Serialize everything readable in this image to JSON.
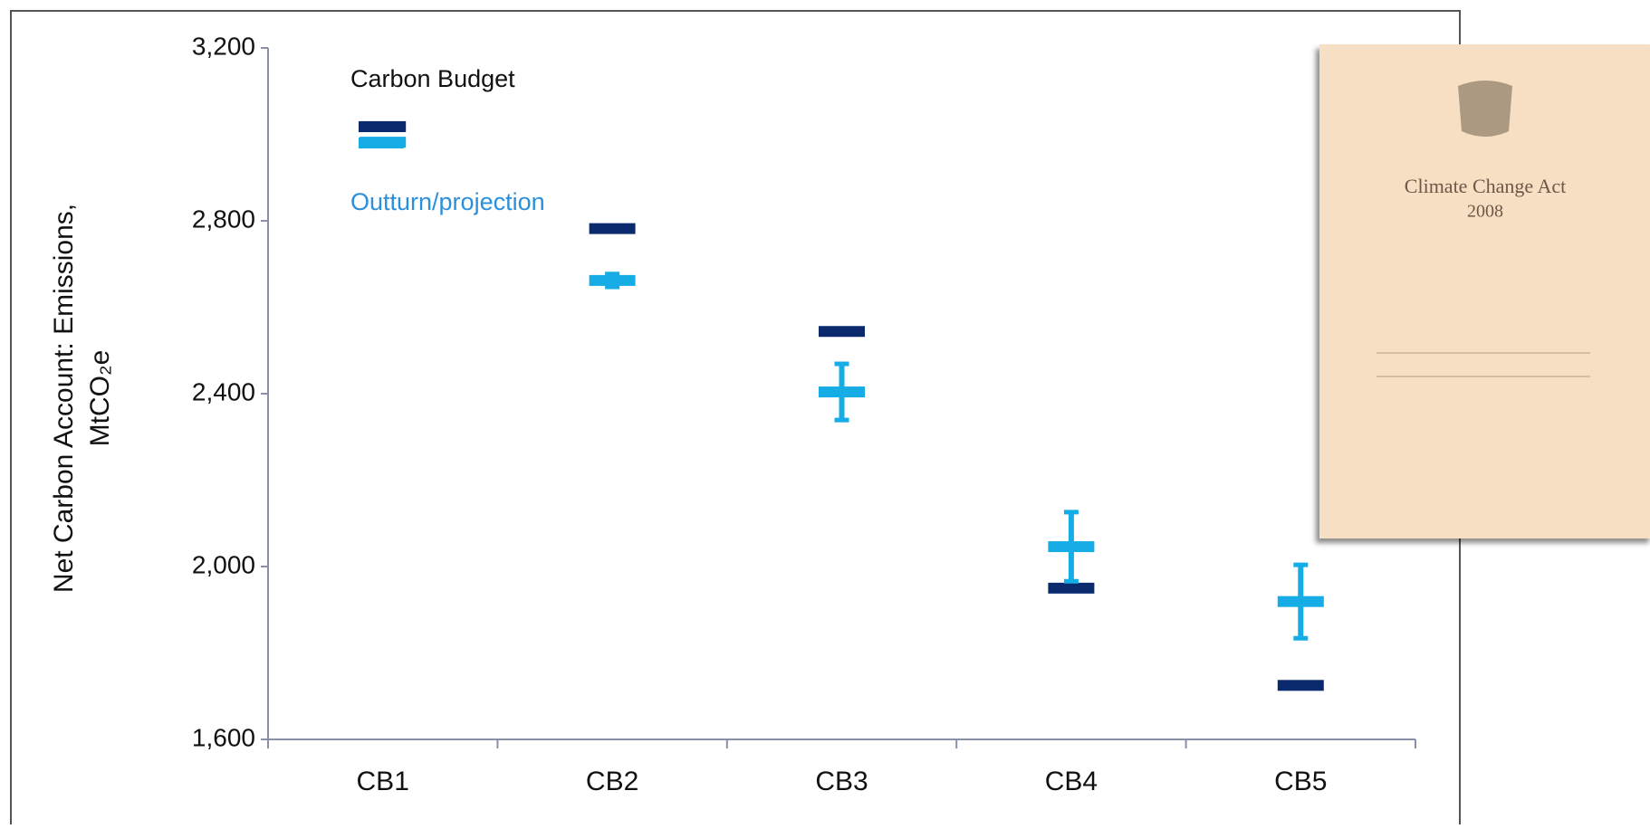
{
  "chart_data": {
    "type": "errorbar",
    "y_label": [
      "Net Carbon Account: Emissions,",
      "MtCO₂e"
    ],
    "categories": [
      "CB1",
      "CB2",
      "CB3",
      "CB4",
      "CB5"
    ],
    "series": [
      {
        "name": "Carbon Budget",
        "color": "#0b2a6e",
        "values": [
          3018,
          2782,
          2544,
          1950,
          1725
        ]
      },
      {
        "name": "Outturn/projection",
        "color": "#16ace6",
        "values": [
          2982,
          2662,
          2404,
          2046,
          1919
        ],
        "errors": [
          null,
          15,
          65,
          80,
          85
        ]
      }
    ],
    "ylim": [
      1600,
      3200
    ],
    "yticks": [
      {
        "value": 1600,
        "label": "1,600"
      },
      {
        "value": 2000,
        "label": "2,000"
      },
      {
        "value": 2400,
        "label": "2,400"
      },
      {
        "value": 2800,
        "label": "2,800"
      },
      {
        "value": 3200,
        "label": "3,200"
      }
    ]
  },
  "inset": {
    "title": "Climate Change Act",
    "year": "2008"
  }
}
